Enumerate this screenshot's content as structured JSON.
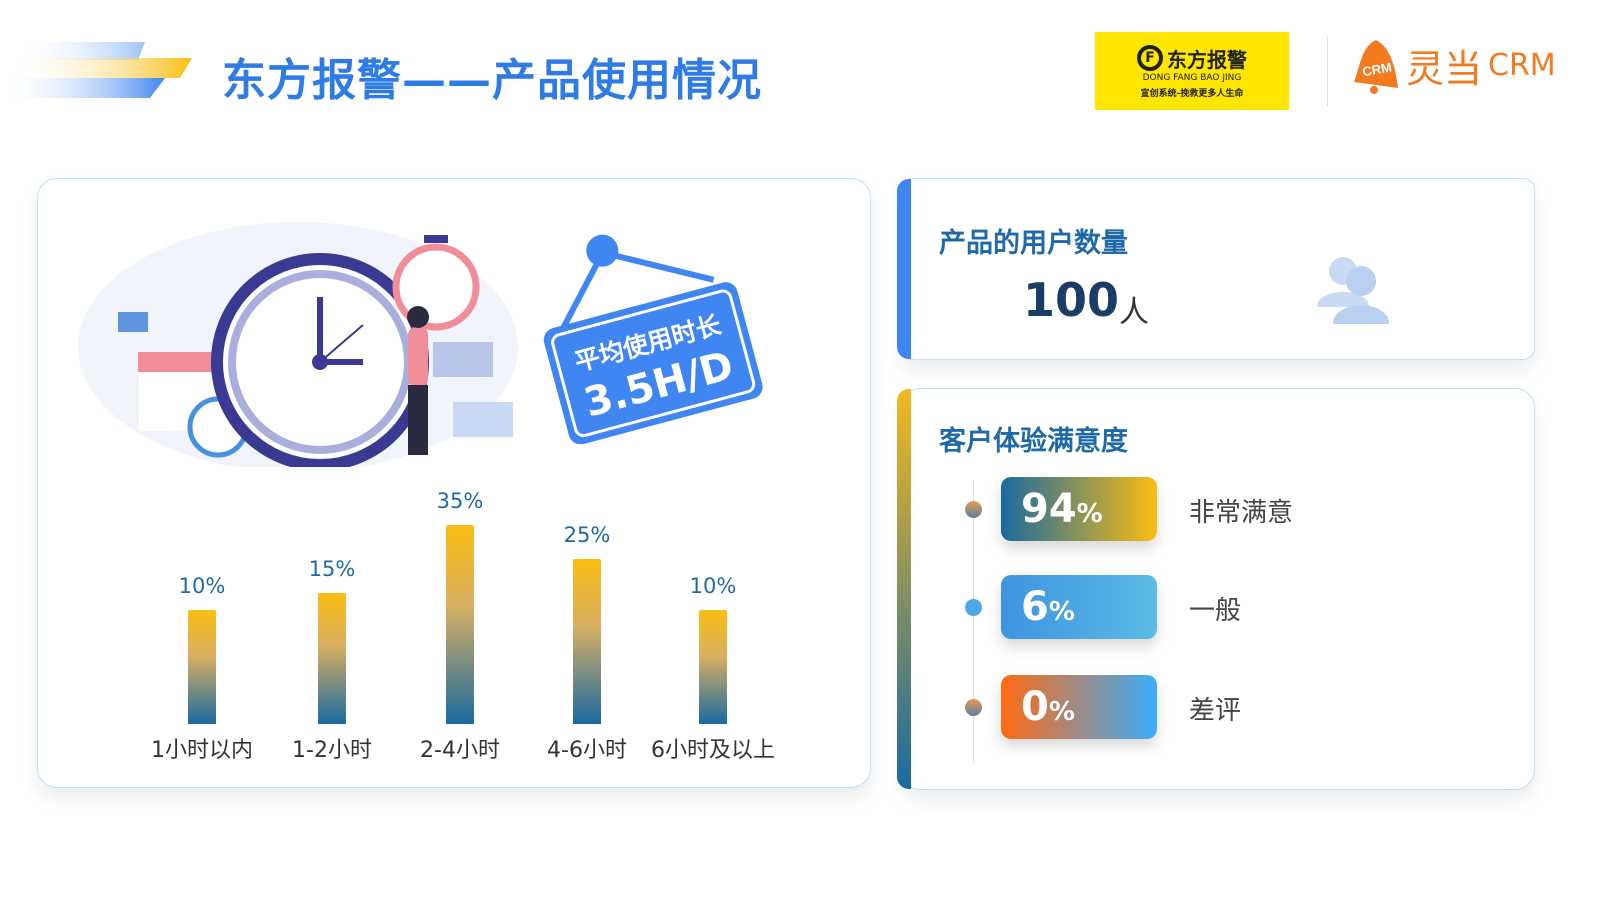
{
  "header": {
    "title": "东方报警——产品使用情况",
    "logo_dfbj": {
      "name": "东方报警",
      "en": "DONG FANG BAO JING",
      "slogan": "宣创系统-挽救更多人生命"
    },
    "logo_crm": {
      "name": "灵当",
      "suffix": "CRM",
      "badge": "CRM"
    }
  },
  "sign": {
    "label": "平均使用时长",
    "value": "3.5H/D"
  },
  "chart_data": {
    "type": "bar",
    "categories": [
      "1小时以内",
      "1-2小时",
      "2-4小时",
      "4-6小时",
      "6小时及以上"
    ],
    "values": [
      10,
      15,
      35,
      25,
      10
    ],
    "value_labels": [
      "10%",
      "15%",
      "35%",
      "25%",
      "10%"
    ],
    "unit": "%"
  },
  "users": {
    "title": "产品的用户数量",
    "count": "100",
    "unit": "人"
  },
  "satisfaction": {
    "title": "客户体验满意度",
    "items": [
      {
        "value": "94",
        "unit": "%",
        "label": "非常满意",
        "gradient": [
          "#1a6aa0",
          "#fbbd12"
        ]
      },
      {
        "value": "6",
        "unit": "%",
        "label": "一般",
        "gradient": [
          "#3e94e0",
          "#5bbbe6"
        ]
      },
      {
        "value": "0",
        "unit": "%",
        "label": "差评",
        "gradient": [
          "#ff6a13",
          "#3aaefc"
        ]
      }
    ]
  },
  "colors": {
    "title": "#2f7be6",
    "heading": "#1e6aa8",
    "sign": "#3f86f3",
    "logo_yellow": "#ffe600",
    "crm_orange": "#f47a1f"
  }
}
